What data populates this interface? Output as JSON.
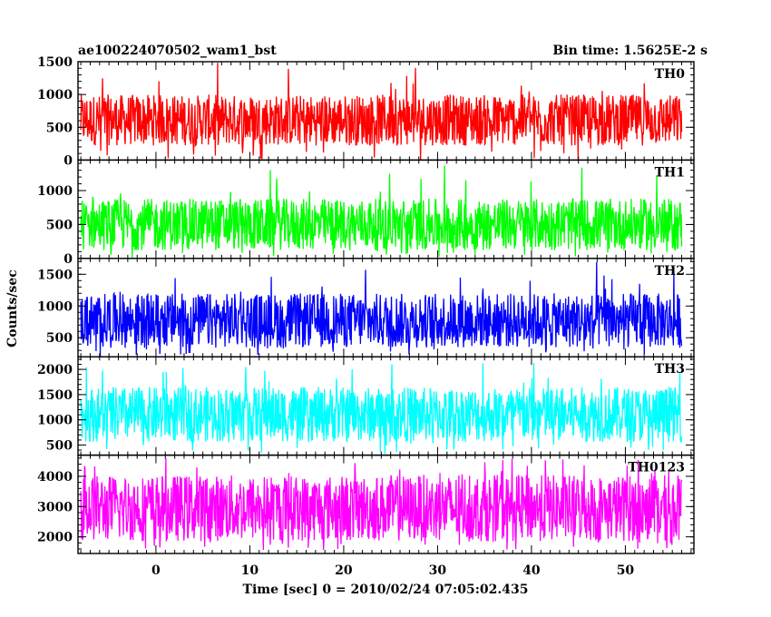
{
  "header": {
    "left_title": "ae100224070502_wam1_bst",
    "right_title": "Bin time: 1.5625E-2 s"
  },
  "chart_data": {
    "type": "line",
    "xlabel": "Time [sec] 0 = 2010/02/24 07:05:02.435",
    "ylabel": "Counts/sec",
    "xlim": [
      -8.3,
      57.3
    ],
    "x_ticks": [
      0,
      10,
      20,
      30,
      40,
      50
    ],
    "x_tick_labels": [
      "0",
      "10",
      "20",
      "30",
      "40",
      "50"
    ],
    "data_x_range": [
      -8.0,
      56.0
    ],
    "bin_time": 0.015625,
    "panels": [
      {
        "label": "TH0",
        "color": "#ff0000",
        "ylim": [
          0,
          1500
        ],
        "y_ticks": [
          0,
          500,
          1000,
          1500
        ],
        "y_tick_labels": [
          "0",
          "500",
          "1000",
          "1500"
        ],
        "typical_low": 220,
        "typical_high": 1000,
        "min": 0,
        "max": 1500
      },
      {
        "label": "TH1",
        "color": "#00ff00",
        "ylim": [
          0,
          1450
        ],
        "y_ticks": [
          0,
          500,
          1000
        ],
        "y_tick_labels": [
          "0",
          "500",
          "1000"
        ],
        "typical_low": 120,
        "typical_high": 880,
        "min": 0,
        "max": 1400
      },
      {
        "label": "TH2",
        "color": "#0000ff",
        "ylim": [
          200,
          1750
        ],
        "y_ticks": [
          500,
          1000,
          1500
        ],
        "y_tick_labels": [
          "500",
          "1000",
          "1500"
        ],
        "typical_low": 340,
        "typical_high": 1200,
        "min": 200,
        "max": 1700
      },
      {
        "label": "TH3",
        "color": "#00ffff",
        "ylim": [
          300,
          2250
        ],
        "y_ticks": [
          500,
          1000,
          1500,
          2000
        ],
        "y_tick_labels": [
          "500",
          "1000",
          "1500",
          "2000"
        ],
        "typical_low": 560,
        "typical_high": 1650,
        "min": 320,
        "max": 2200
      },
      {
        "label": "TH0123",
        "color": "#ff00ff",
        "ylim": [
          1450,
          4700
        ],
        "y_ticks": [
          2000,
          3000,
          4000
        ],
        "y_tick_labels": [
          "2000",
          "3000",
          "4000"
        ],
        "typical_low": 1850,
        "typical_high": 4050,
        "min": 1550,
        "max": 4600
      }
    ]
  }
}
